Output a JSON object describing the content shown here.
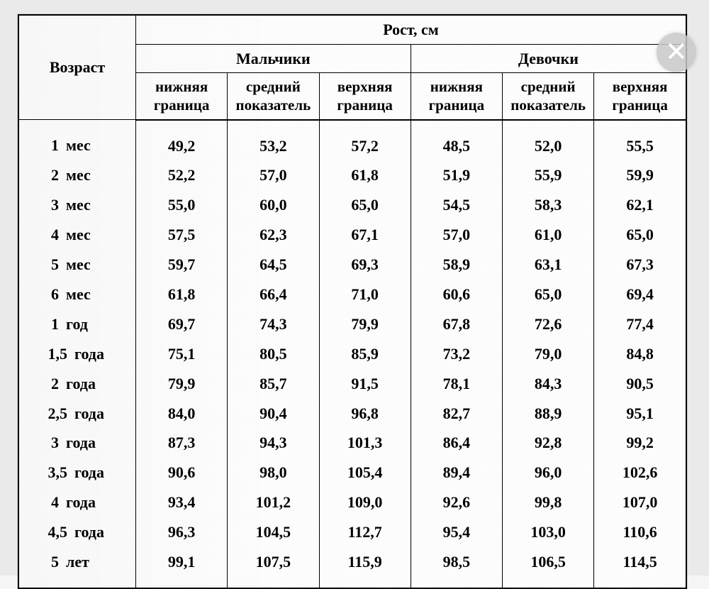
{
  "table": {
    "type": "table",
    "background_color": "#fdfdfd",
    "border_color": "#000000",
    "text_color": "#000000",
    "font_family": "Times New Roman",
    "header_fontsize": 21,
    "body_fontsize": 22,
    "font_weight": "bold",
    "column_widths_pct": [
      17.5,
      13.75,
      13.75,
      13.75,
      13.75,
      13.75,
      13.75
    ],
    "columns_alignment": [
      "left",
      "center",
      "center",
      "center",
      "center",
      "center",
      "center"
    ],
    "headers": {
      "age": "Возраст",
      "height": "Рост, см",
      "boys": "Мальчики",
      "girls": "Девочки",
      "lower": "нижняя\nграница",
      "mean": "средний\nпоказатель",
      "upper": "верхняя\nграница"
    },
    "rows": [
      {
        "age_num": "1",
        "age_unit": "мес",
        "b_low": "49,2",
        "b_mid": "53,2",
        "b_up": "57,2",
        "g_low": "48,5",
        "g_mid": "52,0",
        "g_up": "55,5"
      },
      {
        "age_num": "2",
        "age_unit": "мес",
        "b_low": "52,2",
        "b_mid": "57,0",
        "b_up": "61,8",
        "g_low": "51,9",
        "g_mid": "55,9",
        "g_up": "59,9"
      },
      {
        "age_num": "3",
        "age_unit": "мес",
        "b_low": "55,0",
        "b_mid": "60,0",
        "b_up": "65,0",
        "g_low": "54,5",
        "g_mid": "58,3",
        "g_up": "62,1"
      },
      {
        "age_num": "4",
        "age_unit": "мес",
        "b_low": "57,5",
        "b_mid": "62,3",
        "b_up": "67,1",
        "g_low": "57,0",
        "g_mid": "61,0",
        "g_up": "65,0"
      },
      {
        "age_num": "5",
        "age_unit": "мес",
        "b_low": "59,7",
        "b_mid": "64,5",
        "b_up": "69,3",
        "g_low": "58,9",
        "g_mid": "63,1",
        "g_up": "67,3"
      },
      {
        "age_num": "6",
        "age_unit": "мес",
        "b_low": "61,8",
        "b_mid": "66,4",
        "b_up": "71,0",
        "g_low": "60,6",
        "g_mid": "65,0",
        "g_up": "69,4"
      },
      {
        "age_num": "1",
        "age_unit": "год",
        "b_low": "69,7",
        "b_mid": "74,3",
        "b_up": "79,9",
        "g_low": "67,8",
        "g_mid": "72,6",
        "g_up": "77,4"
      },
      {
        "age_num": "1,5",
        "age_unit": "года",
        "b_low": "75,1",
        "b_mid": "80,5",
        "b_up": "85,9",
        "g_low": "73,2",
        "g_mid": "79,0",
        "g_up": "84,8"
      },
      {
        "age_num": "2",
        "age_unit": "года",
        "b_low": "79,9",
        "b_mid": "85,7",
        "b_up": "91,5",
        "g_low": "78,1",
        "g_mid": "84,3",
        "g_up": "90,5"
      },
      {
        "age_num": "2,5",
        "age_unit": "года",
        "b_low": "84,0",
        "b_mid": "90,4",
        "b_up": "96,8",
        "g_low": "82,7",
        "g_mid": "88,9",
        "g_up": "95,1"
      },
      {
        "age_num": "3",
        "age_unit": "года",
        "b_low": "87,3",
        "b_mid": "94,3",
        "b_up": "101,3",
        "g_low": "86,4",
        "g_mid": "92,8",
        "g_up": "99,2"
      },
      {
        "age_num": "3,5",
        "age_unit": "года",
        "b_low": "90,6",
        "b_mid": "98,0",
        "b_up": "105,4",
        "g_low": "89,4",
        "g_mid": "96,0",
        "g_up": "102,6"
      },
      {
        "age_num": "4",
        "age_unit": "года",
        "b_low": "93,4",
        "b_mid": "101,2",
        "b_up": "109,0",
        "g_low": "92,6",
        "g_mid": "99,8",
        "g_up": "107,0"
      },
      {
        "age_num": "4,5",
        "age_unit": "года",
        "b_low": "96,3",
        "b_mid": "104,5",
        "b_up": "112,7",
        "g_low": "95,4",
        "g_mid": "103,0",
        "g_up": "110,6"
      },
      {
        "age_num": "5",
        "age_unit": "лет",
        "b_low": "99,1",
        "b_mid": "107,5",
        "b_up": "115,9",
        "g_low": "98,5",
        "g_mid": "106,5",
        "g_up": "114,5"
      }
    ]
  },
  "overlay": {
    "close_icon_color": "#ffffff",
    "close_bg_color": "rgba(200,200,200,0.85)"
  }
}
